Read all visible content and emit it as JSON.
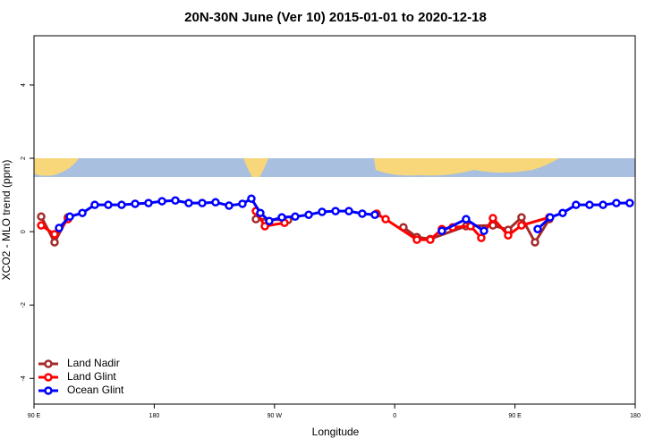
{
  "chart_data": {
    "type": "line",
    "title": "20N-30N June (Ver 10)   2015-01-01 to 2020-12-18",
    "x_label": "Longitude",
    "y_label": "XCO2 - MLO trend (ppm)",
    "xlim": [
      90,
      540
    ],
    "xticks": [
      {
        "value": 90,
        "label": "90 E"
      },
      180,
      {
        "value": 270,
        "label": "90 W"
      },
      {
        "value": 360,
        "label": "0"
      },
      {
        "value": 450,
        "label": "90 E"
      },
      {
        "value": 540,
        "label": "180"
      }
    ],
    "ylim": [
      -4.7,
      5.34
    ],
    "yticks": [
      -4,
      -2,
      0,
      2,
      4
    ],
    "legend": "bottomleft",
    "series": [
      {
        "name": "Land Nadir",
        "color": "#a52a2a",
        "x": [
          95.4,
          105.4,
          115.4,
          200,
          256.1,
          280.2,
          320,
          366.5,
          376.6,
          386.6,
          413.4,
          433.5,
          444.9,
          454.9,
          465,
          475.7
        ],
        "values": [
          0.41,
          -0.29,
          0.39,
          null,
          0.34,
          0.32,
          null,
          0.12,
          -0.15,
          -0.2,
          0.15,
          0.17,
          0.05,
          0.39,
          -0.29,
          0.34
        ]
      },
      {
        "name": "Land Glint",
        "color": "#ff0000",
        "x": [
          95.4,
          105.4,
          115.4,
          200,
          256.1,
          262.8,
          277.5,
          320,
          346.5,
          353.2,
          376.6,
          386.6,
          395.3,
          403.4,
          416.8,
          424.8,
          433.5,
          444.9,
          454.9,
          475.7
        ],
        "values": [
          0.17,
          -0.07,
          0.34,
          null,
          0.56,
          0.15,
          0.24,
          null,
          0.49,
          0.34,
          -0.22,
          -0.22,
          0.07,
          0.12,
          0.15,
          -0.17,
          0.37,
          -0.1,
          0.17,
          0.39
        ]
      },
      {
        "name": "Ocean Glint",
        "color": "#0000ff",
        "x": [
          108.75,
          116.8,
          126.2,
          135.5,
          145.6,
          155.6,
          165.7,
          175.7,
          185.8,
          195.8,
          205.8,
          215.9,
          225.9,
          236,
          246,
          252.7,
          259.4,
          266.1,
          275.5,
          285.5,
          295.6,
          305.6,
          315.7,
          325.7,
          335.7,
          345.1,
          370,
          395.3,
          413.4,
          426.8,
          450,
          467,
          476.3,
          485.7,
          495.7,
          505.8,
          515.9,
          525.9,
          535.9
        ],
        "values": [
          0.1,
          0.41,
          0.51,
          0.73,
          0.73,
          0.73,
          0.76,
          0.78,
          0.83,
          0.85,
          0.78,
          0.78,
          0.8,
          0.71,
          0.76,
          0.9,
          0.51,
          0.29,
          0.39,
          0.41,
          0.46,
          0.54,
          0.56,
          0.56,
          0.49,
          0.46,
          null,
          0.02,
          0.34,
          0.02,
          null,
          0.07,
          0.39,
          0.51,
          0.73,
          0.73,
          0.73,
          0.78,
          0.78
        ]
      }
    ]
  }
}
